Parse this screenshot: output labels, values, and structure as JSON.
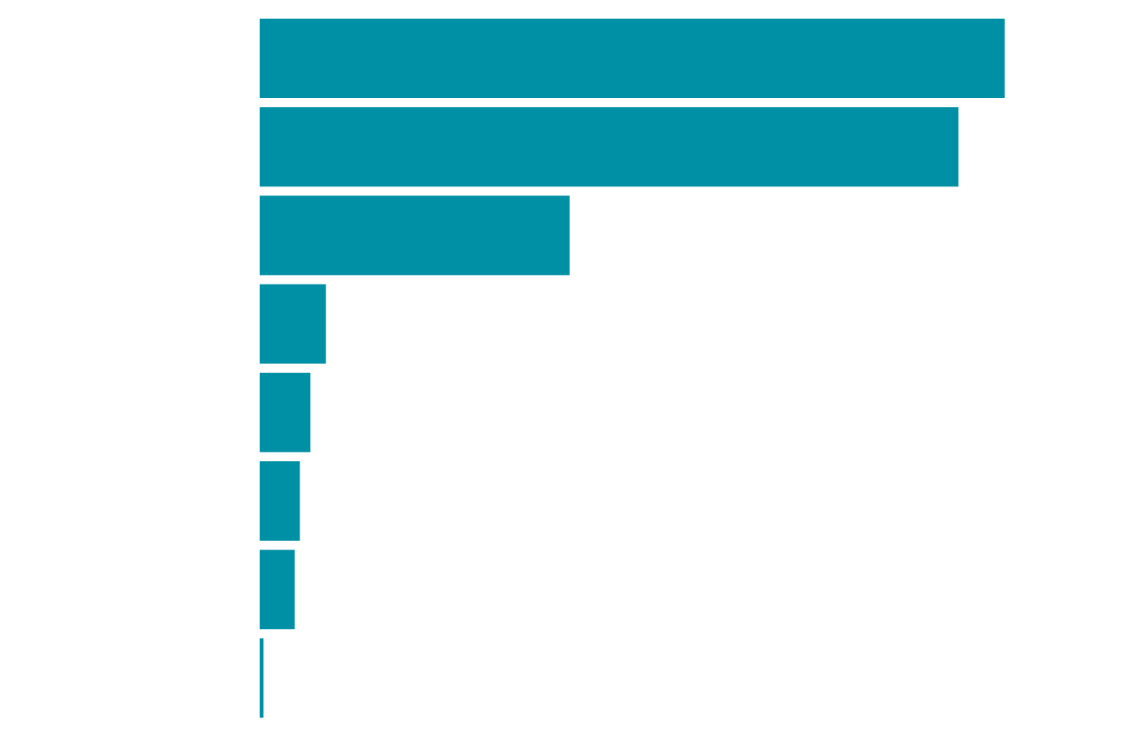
{
  "chart_data": {
    "type": "bar",
    "orientation": "horizontal",
    "categories": [
      "",
      "",
      "",
      "",
      "",
      "",
      "",
      ""
    ],
    "values": [
      100,
      93.8,
      41.6,
      8.9,
      6.8,
      5.4,
      4.7,
      0.5
    ],
    "xlim": [
      0,
      100
    ],
    "title": "",
    "xlabel": "",
    "ylabel": "",
    "grid": false,
    "bar_color": "#0090a5"
  }
}
